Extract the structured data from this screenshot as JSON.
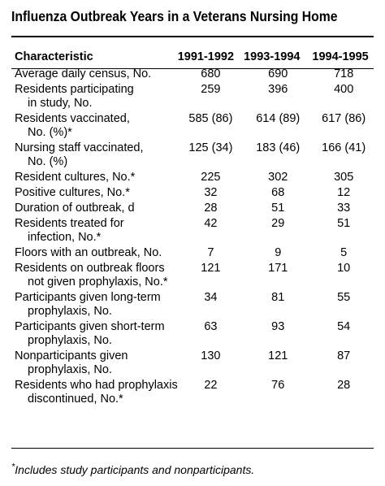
{
  "title": "Influenza Outbreak Years in a Veterans Nursing Home",
  "table": {
    "headers": [
      "Characteristic",
      "1991-1992",
      "1993-1994",
      "1994-1995"
    ],
    "rows": [
      {
        "label": [
          "Average daily census, No."
        ],
        "values": [
          "680",
          "690",
          "718"
        ]
      },
      {
        "label": [
          "Residents participating",
          "in study, No."
        ],
        "values": [
          "259",
          "396",
          "400"
        ]
      },
      {
        "label": [
          "Residents vaccinated,",
          "No. (%)*"
        ],
        "values": [
          "585 (86)",
          "614 (89)",
          "617 (86)"
        ]
      },
      {
        "label": [
          "Nursing staff vaccinated,",
          "No. (%)"
        ],
        "values": [
          "125 (34)",
          "183 (46)",
          "166 (41)"
        ]
      },
      {
        "label": [
          "Resident cultures, No.*"
        ],
        "values": [
          "225",
          "302",
          "305"
        ]
      },
      {
        "label": [
          "Positive cultures, No.*"
        ],
        "values": [
          "32",
          "68",
          "12"
        ]
      },
      {
        "label": [
          "Duration of outbreak, d"
        ],
        "values": [
          "28",
          "51",
          "33"
        ]
      },
      {
        "label": [
          "Residents treated for",
          "infection, No.*"
        ],
        "values": [
          "42",
          "29",
          "51"
        ]
      },
      {
        "label": [
          "Floors with an outbreak, No."
        ],
        "values": [
          "7",
          "9",
          "5"
        ]
      },
      {
        "label": [
          "Residents on outbreak floors",
          "not given prophylaxis, No.*"
        ],
        "values": [
          "121",
          "171",
          "10"
        ]
      },
      {
        "label": [
          "Participants given long-term",
          "prophylaxis, No."
        ],
        "values": [
          "34",
          "81",
          "55"
        ]
      },
      {
        "label": [
          "Participants given short-term",
          "prophylaxis, No."
        ],
        "values": [
          "63",
          "93",
          "54"
        ]
      },
      {
        "label": [
          "Nonparticipants given",
          "prophylaxis, No."
        ],
        "values": [
          "130",
          "121",
          "87"
        ]
      },
      {
        "label": [
          "Residents who had prophylaxis",
          "discontinued, No.*"
        ],
        "values": [
          "22",
          "76",
          "28"
        ]
      }
    ]
  },
  "footnote": {
    "mark": "*",
    "text": "Includes study participants and nonparticipants."
  }
}
